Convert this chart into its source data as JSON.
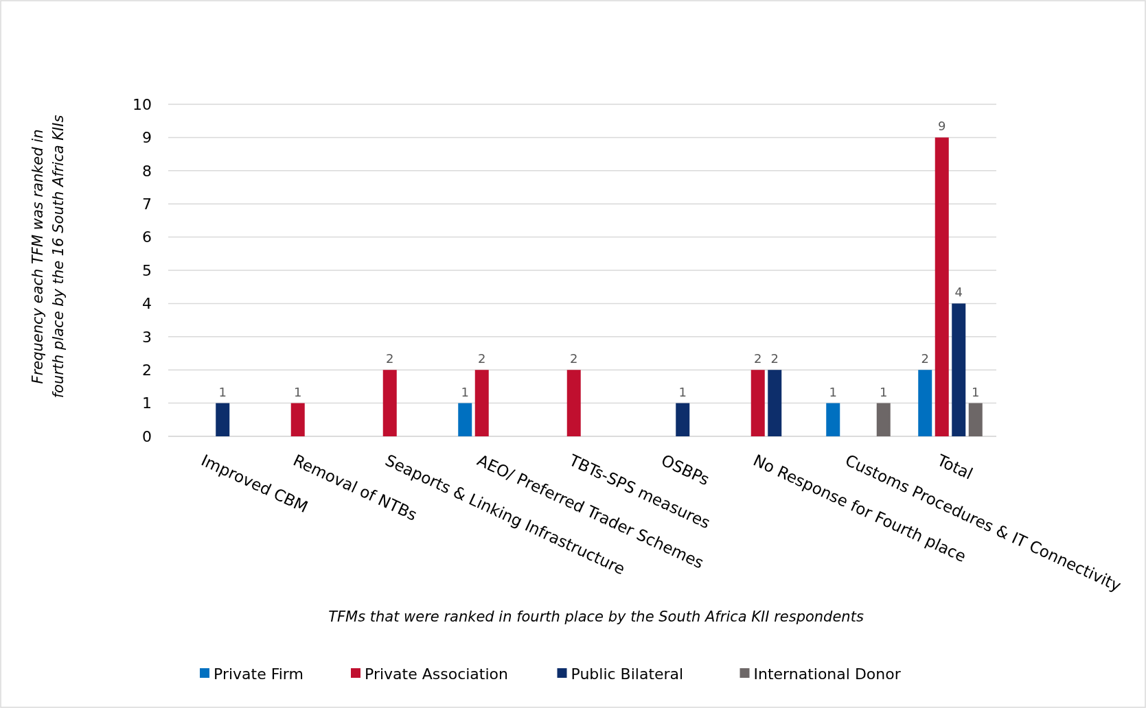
{
  "chart_data": {
    "type": "bar",
    "categories": [
      "Improved CBM",
      "Removal of NTBs",
      "Seaports & Linking Infrastructure",
      "AEO/ Preferred Trader Schemes",
      "TBTs-SPS measures",
      "OSBPs",
      "No Response for Fourth place",
      "Customs Procedures & IT Connectivity",
      "Total"
    ],
    "series": [
      {
        "name": "Private Firm",
        "color": "#0070c0",
        "values": [
          null,
          null,
          null,
          1,
          null,
          null,
          null,
          1,
          2
        ]
      },
      {
        "name": "Private Association",
        "color": "#c00f2f",
        "values": [
          null,
          1,
          2,
          2,
          2,
          null,
          2,
          null,
          9
        ]
      },
      {
        "name": "Public Bilateral",
        "color": "#0d2e6b",
        "values": [
          1,
          null,
          null,
          null,
          null,
          1,
          2,
          null,
          4
        ]
      },
      {
        "name": "International Donor",
        "color": "#6d6767",
        "values": [
          null,
          null,
          null,
          null,
          null,
          null,
          null,
          1,
          1
        ]
      }
    ],
    "xlabel": "TFMs that were ranked in fourth place by the South Africa KII respondents",
    "ylabel": "Frequency each TFM was ranked in\nfourth place by the 16 South Africa  KIIs",
    "ylim": [
      0,
      10
    ],
    "yticks": [
      0,
      1,
      2,
      3,
      4,
      5,
      6,
      7,
      8,
      9,
      10
    ],
    "grid": "y",
    "legend": "bottom",
    "data_labels": true
  }
}
